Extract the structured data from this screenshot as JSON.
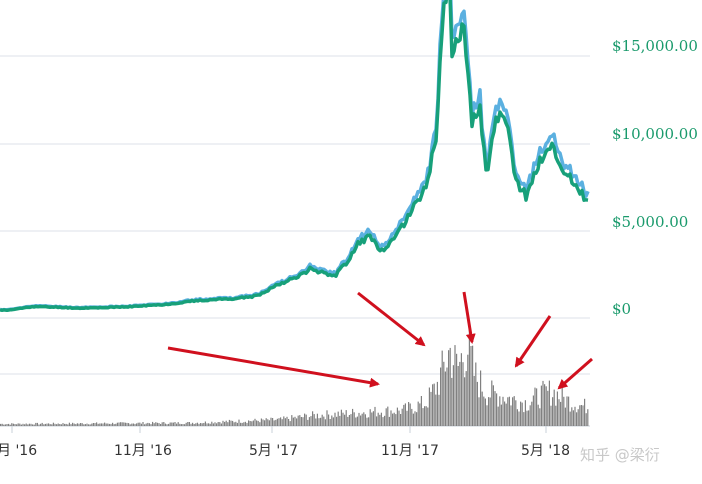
{
  "chart_data": {
    "type": "line",
    "title": "",
    "xlabel": "",
    "ylabel": "",
    "x_ticks": [
      "月 '16",
      "11月 '16",
      "5月 '17",
      "11月 '17",
      "5月 '18"
    ],
    "y_ticks": [
      "$15,000.00",
      "$10,000.00",
      "$5,000.00",
      "$0"
    ],
    "ylim": [
      0,
      18000
    ],
    "grid": true,
    "colors": {
      "price_main": "#17a07a",
      "price_high": "#5bb0e0",
      "volume": "#808080",
      "arrows": "#d0101e",
      "grid": "#dde2ea",
      "tick_text": "#1a9a6c"
    },
    "series": [
      {
        "x": [
          "2016-05-01",
          "2016-06-01",
          "2016-07-01",
          "2016-08-01",
          "2016-09-01",
          "2016-10-01",
          "2016-11-01",
          "2016-12-01",
          "2017-01-01",
          "2017-02-01",
          "2017-03-01",
          "2017-04-01",
          "2017-05-01",
          "2017-05-25",
          "2017-06-12",
          "2017-07-16",
          "2017-08-01",
          "2017-08-15",
          "2017-09-02",
          "2017-09-15",
          "2017-10-01",
          "2017-10-20",
          "2017-11-01",
          "2017-11-15",
          "2017-11-30",
          "2017-12-08",
          "2017-12-17",
          "2017-12-22",
          "2017-12-27",
          "2018-01-06",
          "2018-01-17",
          "2018-01-28",
          "2018-02-06",
          "2018-02-20",
          "2018-03-05",
          "2018-03-18",
          "2018-04-01",
          "2018-04-12",
          "2018-04-25",
          "2018-05-05",
          "2018-05-20",
          "2018-06-05",
          "2018-06-20",
          "2018-06-25"
        ],
        "values": [
          450,
          650,
          620,
          560,
          590,
          620,
          700,
          780,
          950,
          1050,
          1100,
          1250,
          1950,
          2300,
          2800,
          2400,
          3200,
          4200,
          4700,
          3700,
          4300,
          5600,
          6500,
          7300,
          10500,
          16500,
          19500,
          14500,
          15800,
          17000,
          11200,
          11700,
          8300,
          11400,
          11000,
          7800,
          6900,
          8200,
          9400,
          9700,
          8500,
          7600,
          6800,
          6400
        ]
      }
    ],
    "volume": {
      "description_free": true,
      "x": [
        "2016-05-01",
        "2017-01-01",
        "2017-05-01",
        "2017-06-15",
        "2017-08-01",
        "2017-09-15",
        "2017-10-15",
        "2017-11-15",
        "2017-12-01",
        "2017-12-17",
        "2017-12-28",
        "2018-01-10",
        "2018-01-20",
        "2018-02-05",
        "2018-02-20",
        "2018-03-10",
        "2018-04-01",
        "2018-04-20",
        "2018-05-05",
        "2018-05-20",
        "2018-06-10",
        "2018-06-25"
      ],
      "values": [
        0.02,
        0.03,
        0.06,
        0.1,
        0.12,
        0.14,
        0.15,
        0.22,
        0.4,
        0.72,
        0.55,
        0.78,
        0.48,
        0.32,
        0.3,
        0.26,
        0.22,
        0.3,
        0.33,
        0.26,
        0.2,
        0.18
      ]
    }
  },
  "watermark": {
    "text": "知乎 @梁衍"
  }
}
